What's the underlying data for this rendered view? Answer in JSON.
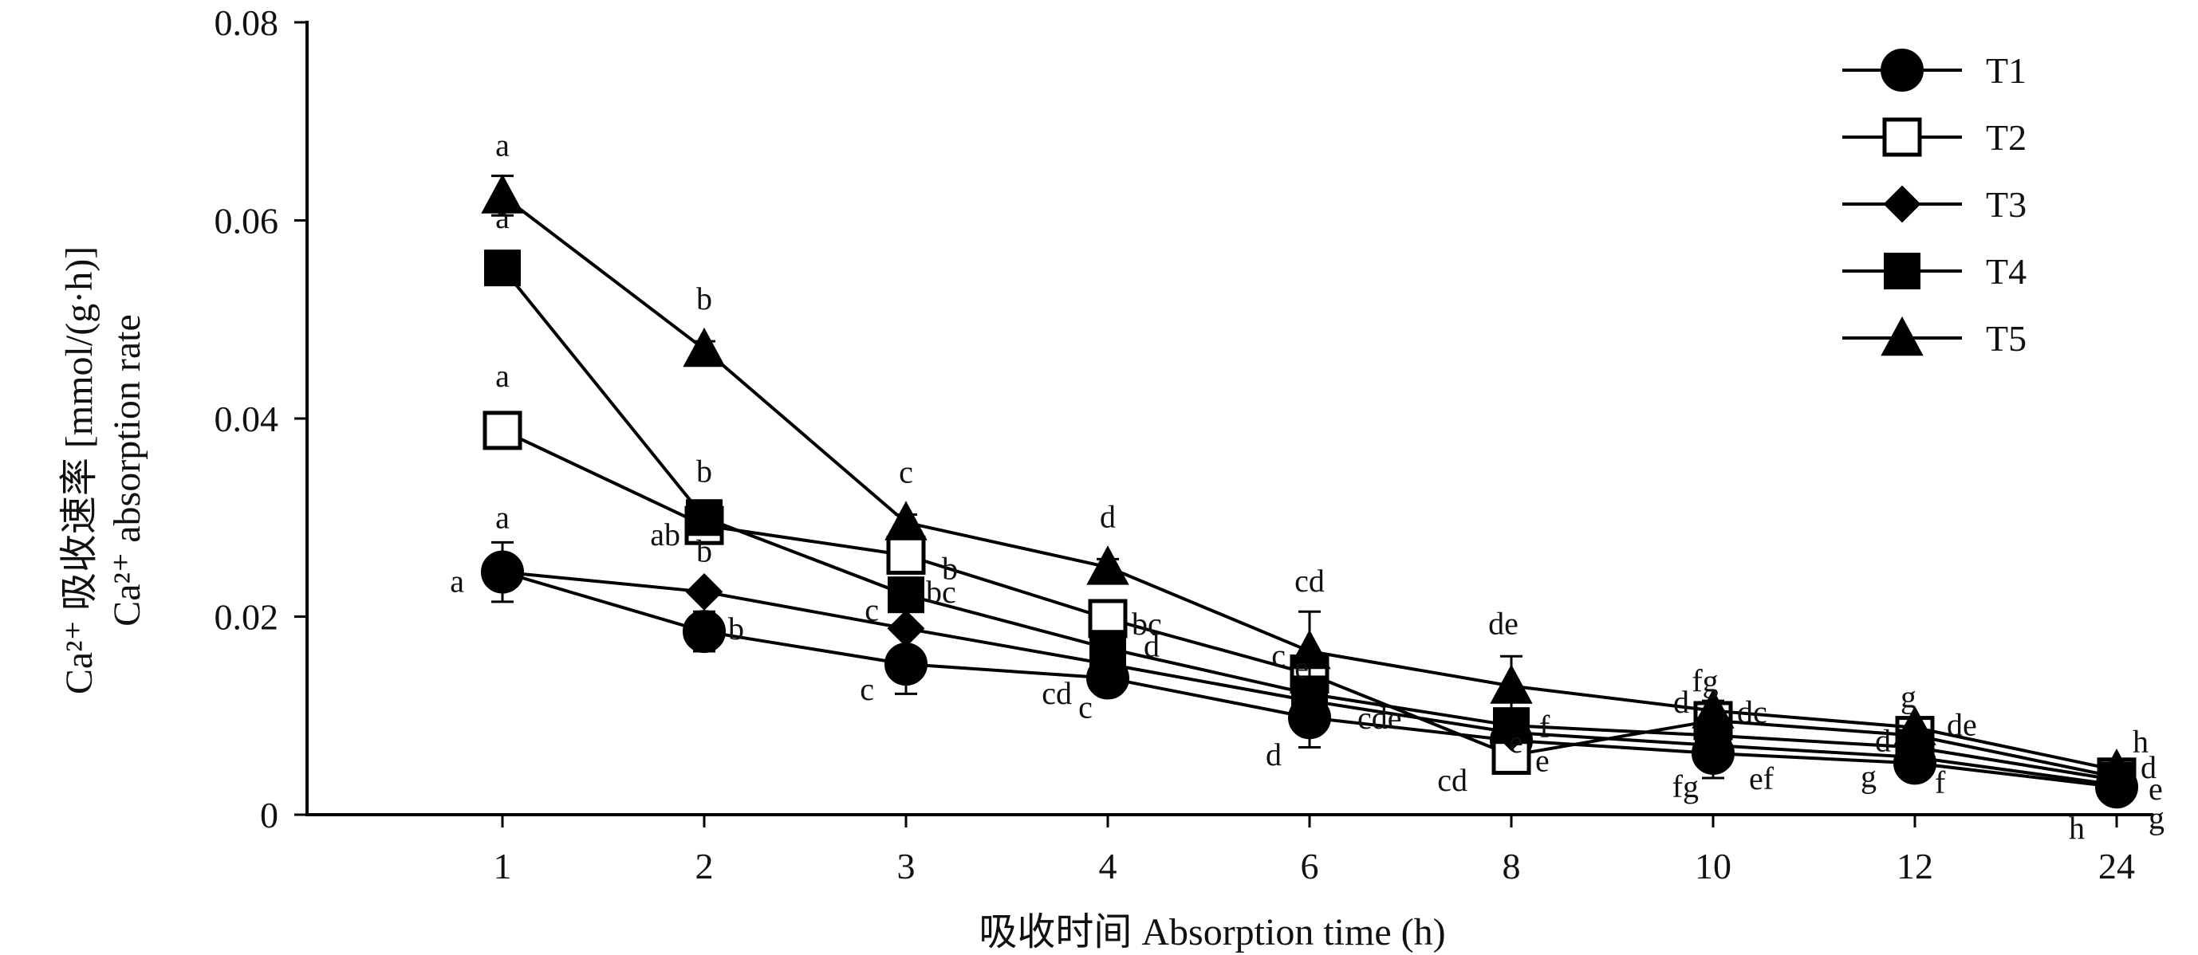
{
  "chart_data": {
    "type": "line",
    "categories": [
      "1",
      "2",
      "3",
      "4",
      "6",
      "8",
      "10",
      "12",
      "24"
    ],
    "xlabel": "吸收时间 Absorption time (h)",
    "ylabel_cn": "Ca²⁺ 吸收速率 [mmol/(g·h)]",
    "ylabel_en": "Ca²⁺ absorption rate",
    "ylim": [
      0,
      0.08
    ],
    "yticks": [
      "0",
      "0.02",
      "0.04",
      "0.06",
      "0.08"
    ],
    "grid": false,
    "legend_position": "top-right",
    "series": [
      {
        "name": "T1",
        "marker": "circle",
        "values": [
          0.0245,
          0.0185,
          0.0152,
          0.0138,
          0.0098,
          0.0075,
          0.0062,
          0.0052,
          0.0028
        ],
        "errors": [
          0.003,
          0.002,
          0.003,
          0.0015,
          0.003,
          0.001,
          0.0025,
          0.001,
          0.0005
        ],
        "labels": [
          "a",
          "b",
          "c",
          "c",
          "d",
          "cd",
          "fg",
          "g",
          "h"
        ]
      },
      {
        "name": "T2",
        "marker": "square-open",
        "values": [
          0.0388,
          0.0292,
          0.0262,
          0.0198,
          0.0142,
          0.006,
          0.0095,
          0.008,
          0.0038
        ],
        "errors": [
          0.0015,
          0.0015,
          0.0015,
          0.0015,
          0.0015,
          0.001,
          0.001,
          0.001,
          0.0005
        ],
        "labels": [
          "a",
          "ab",
          "b",
          "bc",
          "c",
          "e",
          "d",
          "d",
          "e"
        ]
      },
      {
        "name": "T3",
        "marker": "diamond",
        "values": [
          0.0245,
          0.0225,
          0.0188,
          0.0152,
          0.0115,
          0.0083,
          0.007,
          0.0058,
          0.003
        ],
        "errors": [
          0.0,
          0.0,
          0.0,
          0.0,
          0.0,
          0.0,
          0.0,
          0.0,
          0.0
        ],
        "labels": [
          "a",
          "b",
          "c",
          "cd",
          "cde",
          "e",
          "ef",
          "f",
          "g"
        ]
      },
      {
        "name": "T4",
        "marker": "square",
        "values": [
          0.0552,
          0.03,
          0.0222,
          0.0168,
          0.0122,
          0.009,
          0.008,
          0.0068,
          0.0035
        ],
        "errors": [
          0.001,
          0.001,
          0.001,
          0.001,
          0.001,
          0.001,
          0.001,
          0.001,
          0.0005
        ],
        "labels": [
          "a",
          "b",
          "bc",
          "d",
          "e",
          "f",
          "fg",
          "g",
          "h"
        ]
      },
      {
        "name": "T5",
        "marker": "triangle",
        "values": [
          0.0625,
          0.047,
          0.0295,
          0.025,
          0.0165,
          0.013,
          0.0105,
          0.0088,
          0.0045
        ],
        "errors": [
          0.002,
          0.0008,
          0.0008,
          0.0008,
          0.004,
          0.003,
          0.001,
          0.001,
          0.0005
        ],
        "labels": [
          "a",
          "b",
          "c",
          "d",
          "cd",
          "de",
          "dc",
          "de",
          "d"
        ]
      }
    ]
  }
}
